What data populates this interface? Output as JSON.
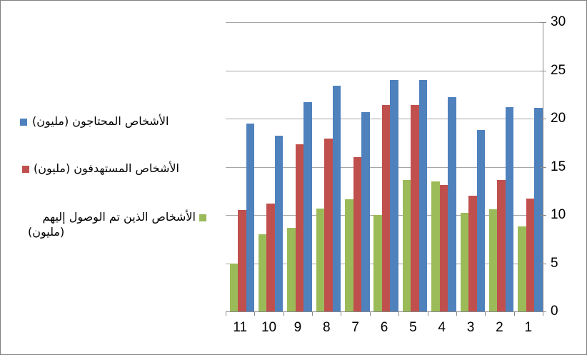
{
  "chart_data": {
    "type": "bar",
    "title": "",
    "xlabel": "",
    "ylabel": "",
    "direction": "rtl",
    "categories_left_to_right": [
      "11",
      "10",
      "9",
      "8",
      "7",
      "6",
      "5",
      "4",
      "3",
      "2",
      "1"
    ],
    "series": [
      {
        "name": "الأشخاص المحتاجون (مليون)",
        "color": "#4F81BD",
        "values": [
          19.5,
          18.2,
          21.7,
          23.4,
          20.7,
          24,
          24,
          22.2,
          18.8,
          21.2,
          21.1
        ]
      },
      {
        "name": "الأشخاص المستهدفون (مليون)",
        "color": "#C0504D",
        "values": [
          10.5,
          11.2,
          17.3,
          17.9,
          16,
          21.4,
          21.4,
          13.1,
          12,
          13.6,
          11.7
        ]
      },
      {
        "name": "الأشخاص الذين تم الوصول إليهم (مليون)",
        "color": "#9BBB59",
        "values": [
          5,
          8,
          8.7,
          10.7,
          11.6,
          10,
          13.6,
          13.5,
          10.2,
          10.6,
          8.8
        ]
      }
    ],
    "ylim": [
      0,
      30
    ],
    "ytick_step": 5,
    "yticks": [
      "0",
      "5",
      "10",
      "15",
      "20",
      "25",
      "30"
    ],
    "grid": true,
    "legend_position": "left",
    "value_axis_side": "right"
  },
  "legend": {
    "item1": {
      "label": "الأشخاص المحتاجون (مليون)",
      "color": "#4F81BD"
    },
    "item2": {
      "label": "الأشخاص المستهدفون (مليون)",
      "color": "#C0504D"
    },
    "item3": {
      "label_line1": "الأشخاص الذين تم الوصول إليهم",
      "label_line2": "(مليون)",
      "color": "#9BBB59"
    }
  },
  "colors": {
    "gridline": "#A6A6A6",
    "axis": "#898989",
    "page_border": "#808080",
    "background": "#FFFFFF",
    "text": "#000000"
  }
}
